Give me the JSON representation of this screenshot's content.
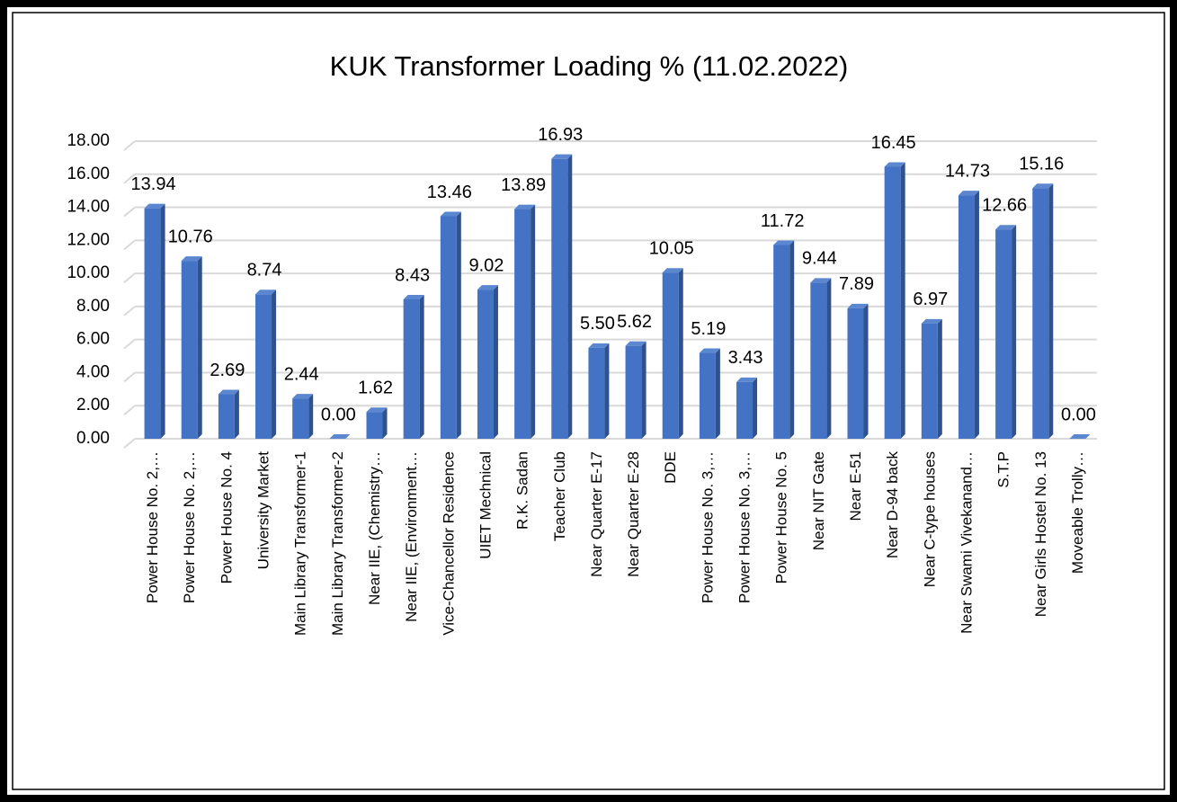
{
  "chart_data": {
    "type": "bar",
    "title": "KUK Transformer  Loading % (11.02.2022)",
    "categories": [
      "Power House No. 2,…",
      "Power House No. 2,…",
      "Power House No. 4",
      "University Market",
      "Main Library Transformer-1",
      "Main Library Transformer-2",
      "Near IIE,  (Chemistry…",
      "Near IIE, (Environment…",
      "Vice-Chancellor Residence",
      "UIET Mechnical",
      "R.K. Sadan",
      "Teacher Club",
      "Near Quarter E-17",
      "Near Quarter E-28",
      "DDE",
      "Power House No. 3,…",
      "Power House No. 3,…",
      "Power House No. 5",
      "Near NIT Gate",
      "Near E-51",
      "Near D-94 back",
      "Near C-type houses",
      "Near  Swami Vivekanand…",
      "S.T.P",
      "Near Girls Hostel No. 13",
      "Moveable Trolly…"
    ],
    "values": [
      13.94,
      10.76,
      2.69,
      8.74,
      2.44,
      0,
      1.62,
      8.43,
      13.46,
      9.02,
      13.89,
      16.93,
      5.5,
      5.62,
      10.05,
      5.19,
      3.43,
      11.72,
      9.44,
      7.89,
      16.45,
      6.97,
      14.73,
      12.66,
      15.16,
      0
    ],
    "value_labels": [
      "13.94",
      "10.76",
      "2.69",
      "8.74",
      "2.44",
      "0.00",
      "1.62",
      "8.43",
      "13.46",
      "9.02",
      "13.89",
      "16.93",
      "5.50",
      "5.62",
      "10.05",
      "5.19",
      "3.43",
      "11.72",
      "9.44",
      "7.89",
      "16.45",
      "6.97",
      "14.73",
      "12.66",
      "15.16",
      "0.00"
    ],
    "color": "#4472c4",
    "ylim": [
      0,
      18
    ],
    "yticks": [
      {
        "value": 0,
        "label": "0.00"
      },
      {
        "value": 2,
        "label": "2.00"
      },
      {
        "value": 4,
        "label": "4.00"
      },
      {
        "value": 6,
        "label": "6.00"
      },
      {
        "value": 8,
        "label": "8.00"
      },
      {
        "value": 10,
        "label": "10.00"
      },
      {
        "value": 12,
        "label": "12.00"
      },
      {
        "value": 14,
        "label": "14.00"
      },
      {
        "value": 16,
        "label": "16.00"
      },
      {
        "value": 18,
        "label": "18.00"
      }
    ],
    "grid": true
  }
}
